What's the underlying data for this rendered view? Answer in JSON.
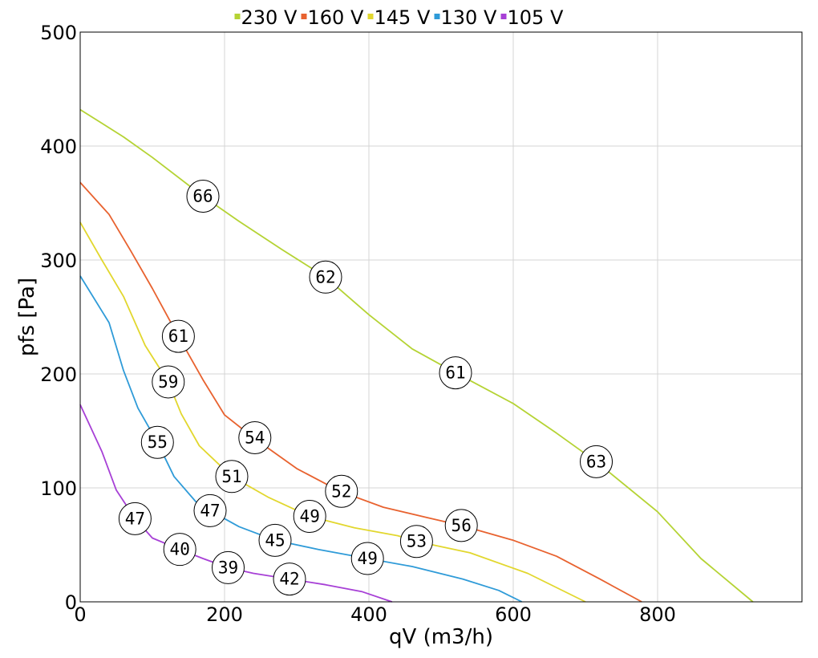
{
  "chart_data": {
    "type": "line",
    "title": "",
    "xlabel": "qV (m3/h)",
    "ylabel": "pfs [Pa]",
    "xlim": [
      0,
      1000
    ],
    "ylim": [
      0,
      500
    ],
    "xticks": [
      0,
      200,
      400,
      600,
      800
    ],
    "yticks": [
      0,
      100,
      200,
      300,
      400,
      500
    ],
    "grid": true,
    "legend_position": "top",
    "series": [
      {
        "name": "230 V",
        "color": "#b5d334",
        "points": [
          [
            0,
            432
          ],
          [
            60,
            408
          ],
          [
            100,
            390
          ],
          [
            170,
            356
          ],
          [
            220,
            334
          ],
          [
            280,
            309
          ],
          [
            340,
            285
          ],
          [
            400,
            252
          ],
          [
            460,
            222
          ],
          [
            520,
            201
          ],
          [
            600,
            174
          ],
          [
            660,
            148
          ],
          [
            715,
            123
          ],
          [
            800,
            79
          ],
          [
            860,
            38
          ],
          [
            932,
            0
          ]
        ],
        "labels": [
          {
            "x": 170,
            "y": 356,
            "text": "66"
          },
          {
            "x": 340,
            "y": 285,
            "text": "62"
          },
          {
            "x": 520,
            "y": 201,
            "text": "61"
          },
          {
            "x": 715,
            "y": 123,
            "text": "63"
          }
        ]
      },
      {
        "name": "160 V",
        "color": "#e8622f",
        "points": [
          [
            0,
            368
          ],
          [
            40,
            340
          ],
          [
            70,
            308
          ],
          [
            100,
            275
          ],
          [
            136,
            233
          ],
          [
            170,
            195
          ],
          [
            200,
            164
          ],
          [
            240,
            144
          ],
          [
            300,
            117
          ],
          [
            360,
            97
          ],
          [
            420,
            83
          ],
          [
            480,
            74
          ],
          [
            528,
            67
          ],
          [
            600,
            54
          ],
          [
            660,
            40
          ],
          [
            720,
            20
          ],
          [
            778,
            0
          ]
        ],
        "labels": [
          {
            "x": 136,
            "y": 233,
            "text": "61"
          },
          {
            "x": 242,
            "y": 144,
            "text": "54"
          },
          {
            "x": 362,
            "y": 97,
            "text": "52"
          },
          {
            "x": 528,
            "y": 67,
            "text": "56"
          }
        ]
      },
      {
        "name": "145 V",
        "color": "#e2d72e",
        "points": [
          [
            0,
            333
          ],
          [
            30,
            300
          ],
          [
            60,
            268
          ],
          [
            90,
            225
          ],
          [
            122,
            193
          ],
          [
            140,
            165
          ],
          [
            165,
            137
          ],
          [
            210,
            110
          ],
          [
            260,
            92
          ],
          [
            318,
            75
          ],
          [
            380,
            65
          ],
          [
            440,
            58
          ],
          [
            466,
            53
          ],
          [
            540,
            43
          ],
          [
            620,
            25
          ],
          [
            700,
            0
          ]
        ],
        "labels": [
          {
            "x": 122,
            "y": 193,
            "text": "59"
          },
          {
            "x": 210,
            "y": 110,
            "text": "51"
          },
          {
            "x": 318,
            "y": 75,
            "text": "49"
          },
          {
            "x": 466,
            "y": 53,
            "text": "53"
          }
        ]
      },
      {
        "name": "130 V",
        "color": "#2f9bd8",
        "points": [
          [
            0,
            286
          ],
          [
            40,
            245
          ],
          [
            60,
            203
          ],
          [
            80,
            170
          ],
          [
            107,
            140
          ],
          [
            130,
            110
          ],
          [
            160,
            88
          ],
          [
            180,
            80
          ],
          [
            220,
            66
          ],
          [
            270,
            54
          ],
          [
            330,
            46
          ],
          [
            398,
            38
          ],
          [
            460,
            31
          ],
          [
            530,
            20
          ],
          [
            580,
            10
          ],
          [
            612,
            0
          ]
        ],
        "labels": [
          {
            "x": 107,
            "y": 140,
            "text": "55"
          },
          {
            "x": 180,
            "y": 80,
            "text": "47"
          },
          {
            "x": 270,
            "y": 54,
            "text": "45"
          },
          {
            "x": 398,
            "y": 38,
            "text": "49"
          }
        ]
      },
      {
        "name": "105 V",
        "color": "#a740d6",
        "points": [
          [
            0,
            173
          ],
          [
            30,
            132
          ],
          [
            50,
            98
          ],
          [
            76,
            73
          ],
          [
            100,
            56
          ],
          [
            138,
            46
          ],
          [
            170,
            38
          ],
          [
            205,
            30
          ],
          [
            240,
            25
          ],
          [
            290,
            20
          ],
          [
            340,
            15
          ],
          [
            390,
            9
          ],
          [
            432,
            0
          ]
        ],
        "labels": [
          {
            "x": 76,
            "y": 73,
            "text": "47"
          },
          {
            "x": 138,
            "y": 46,
            "text": "40"
          },
          {
            "x": 205,
            "y": 30,
            "text": "39"
          },
          {
            "x": 290,
            "y": 20,
            "text": "42"
          }
        ]
      }
    ]
  }
}
